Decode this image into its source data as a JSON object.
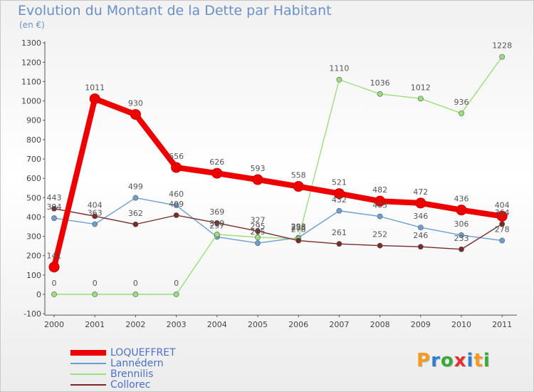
{
  "chart_data": {
    "type": "line",
    "title": "Evolution du Montant de la Dette par Habitant",
    "subtitle": "(en €)",
    "x": [
      "2000",
      "2001",
      "2002",
      "2003",
      "2004",
      "2005",
      "2006",
      "2007",
      "2008",
      "2009",
      "2010",
      "2011"
    ],
    "ylim": [
      -100,
      1300
    ],
    "yticks": [
      "-100",
      "0",
      "100",
      "200",
      "300",
      "400",
      "500",
      "600",
      "700",
      "800",
      "900",
      "1000",
      "1100",
      "1200",
      "1300"
    ],
    "grid": false,
    "legend_position": "bottom-left",
    "series": [
      {
        "name": "LOQUEFFRET",
        "color": "#ee0000",
        "values": [
          141,
          1011,
          930,
          656,
          626,
          593,
          558,
          521,
          482,
          472,
          436,
          404
        ],
        "labels": [
          "141",
          "1011",
          "930",
          "656",
          "626",
          "593",
          "558",
          "521",
          "482",
          "472",
          "436",
          "404"
        ]
      },
      {
        "name": "Lannédern",
        "color": "#6a9fd4",
        "values": [
          394,
          363,
          499,
          460,
          297,
          265,
          293,
          432,
          403,
          346,
          306,
          278
        ],
        "labels": [
          "394",
          "363",
          "499",
          "460",
          "297",
          "265",
          "293",
          "432",
          "403",
          "346",
          "306",
          "278"
        ]
      },
      {
        "name": "Brennilis",
        "color": "#99e07a",
        "values": [
          0,
          0,
          0,
          0,
          310,
          295,
          288,
          1110,
          1036,
          1012,
          936,
          1228
        ],
        "labels": [
          "0",
          "0",
          "0",
          "0",
          "310",
          "295",
          "288",
          "1110",
          "1036",
          "1012",
          "936",
          "1228"
        ]
      },
      {
        "name": "Collorec",
        "color": "#7a2a2a",
        "values": [
          443,
          404,
          362,
          409,
          369,
          327,
          278,
          261,
          252,
          246,
          233,
          364
        ],
        "labels": [
          "443",
          "404",
          "362",
          "409",
          "369",
          "327",
          "278",
          "261",
          "252",
          "246",
          "233",
          "364"
        ]
      }
    ]
  },
  "logo": {
    "text": "Proxiti",
    "letter_colors": [
      "#f39a1f",
      "#2f7fcf",
      "#3aa93a",
      "#e63030",
      "#2f7fcf",
      "#f39a1f",
      "#3aa93a"
    ]
  }
}
